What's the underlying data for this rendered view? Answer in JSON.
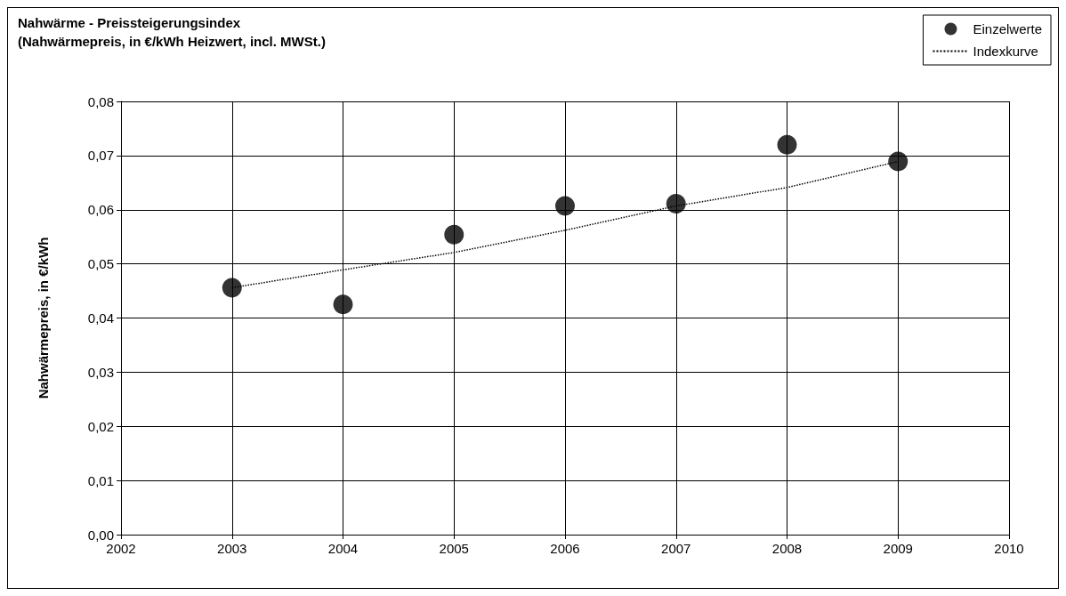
{
  "chart_data": {
    "type": "scatter",
    "title": "Nahwärme - Preissteigerungsindex",
    "subtitle": "(Nahwärmepreis, in €/kWh Heizwert, incl. MWSt.)",
    "ylabel": "Nahwärmepreis, in €/kWh",
    "series": [
      {
        "name": "Einzelwerte",
        "color": "#000000",
        "marker": "circle",
        "x": [
          2003,
          2004,
          2005,
          2006,
          2007,
          2008,
          2009
        ],
        "values": [
          0.0456,
          0.0425,
          0.0554,
          0.0607,
          0.0611,
          0.072,
          0.0689
        ]
      },
      {
        "name": "Indexkurve",
        "type": "line",
        "color": "#000000",
        "marker": "none",
        "line_style": "dotted",
        "x": [
          2003,
          2004,
          2005,
          2006,
          2007,
          2008,
          2009
        ],
        "values": [
          0.0456,
          0.0489,
          0.0521,
          0.0562,
          0.0607,
          0.0641,
          0.0689
        ]
      }
    ],
    "xlim": [
      2002,
      2010
    ],
    "xticks": [
      2002,
      2003,
      2004,
      2005,
      2006,
      2007,
      2008,
      2009,
      2010
    ],
    "ylim": [
      0,
      0.08
    ],
    "yticks": [
      {
        "value": 0,
        "label": "0,00"
      },
      {
        "value": 0.01,
        "label": "0,01"
      },
      {
        "value": 0.02,
        "label": "0,02"
      },
      {
        "value": 0.03,
        "label": "0,03"
      },
      {
        "value": 0.04,
        "label": "0,04"
      },
      {
        "value": 0.05,
        "label": "0,05"
      },
      {
        "value": 0.06,
        "label": "0,06"
      },
      {
        "value": 0.07,
        "label": "0,07"
      },
      {
        "value": 0.08,
        "label": "0,08"
      }
    ],
    "grid": true,
    "legend": "top right"
  }
}
